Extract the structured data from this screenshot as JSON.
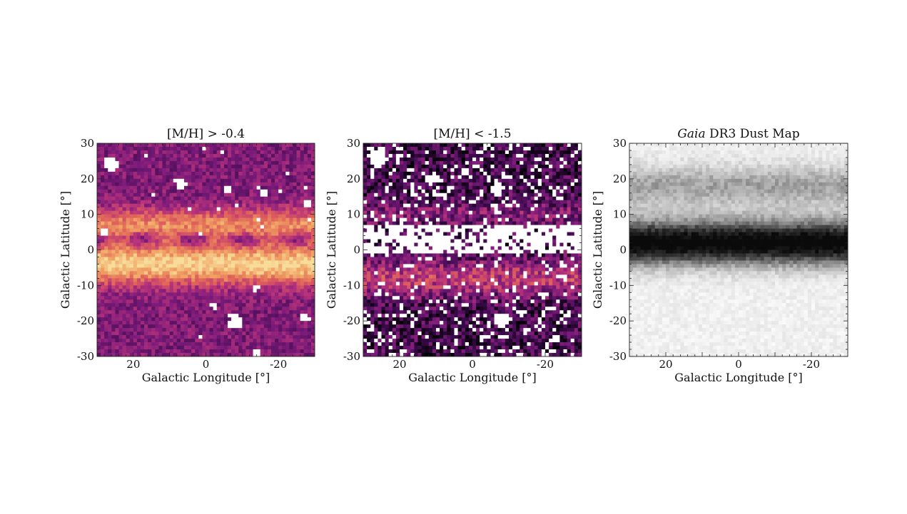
{
  "chart_data": [
    {
      "type": "heatmap",
      "title": "[M/H] > -0.4",
      "title_parts": {
        "prefix": "",
        "italic": "",
        "rest": "[M/H] > -0.4"
      },
      "xlabel": "Galactic Longitude [°]",
      "ylabel": "Galactic Latitude [°]",
      "xlim": [
        30,
        -30
      ],
      "ylim": [
        -30,
        30
      ],
      "xticks": [
        20,
        0,
        -20
      ],
      "xtick_labels": [
        "20",
        "0",
        "-20"
      ],
      "yticks": [
        30,
        20,
        10,
        0,
        -10,
        -20,
        -30
      ],
      "ytick_labels": [
        "30",
        "20",
        "10",
        "0",
        "-10",
        "-20",
        "-30"
      ],
      "grid": false,
      "colormap": [
        "#3a0a4a",
        "#7a1a7a",
        "#b8337a",
        "#e0625a",
        "#f0a062",
        "#f7dc9a"
      ],
      "field": {
        "bins": 60,
        "seed": 11,
        "base": 0.22,
        "bands": [
          {
            "b0": -4,
            "width": 5.5,
            "amp": 0.75
          },
          {
            "b0": 7,
            "width": 4.5,
            "amp": 0.5
          }
        ],
        "dark_lane": {
          "b0": 3,
          "width": 2.0,
          "amp": -0.35
        },
        "noise": 0.14,
        "holes": [
          {
            "l": 26,
            "b": 24,
            "r": 2.2
          },
          {
            "l": 7,
            "b": 19,
            "r": 1.5
          },
          {
            "l": -6,
            "b": 17,
            "r": 1.2
          },
          {
            "l": -16,
            "b": 16,
            "r": 1.0
          },
          {
            "l": 28,
            "b": 5,
            "r": 1.0
          },
          {
            "l": -28,
            "b": 13,
            "r": 0.8
          },
          {
            "l": -8,
            "b": -20,
            "r": 2.0
          },
          {
            "l": -27,
            "b": -19,
            "r": 1.4
          },
          {
            "l": -14,
            "b": -29,
            "r": 1.2
          },
          {
            "l": -14,
            "b": -11,
            "r": 0.7
          },
          {
            "l": -2,
            "b": -16,
            "r": 0.7
          }
        ],
        "hole_sparse": 0.004
      }
    },
    {
      "type": "heatmap",
      "title": "[M/H] < -1.5",
      "title_parts": {
        "prefix": "",
        "italic": "",
        "rest": "[M/H] < -1.5"
      },
      "xlabel": "Galactic Longitude [°]",
      "ylabel": "Galactic Latitude [°]",
      "xlim": [
        30,
        -30
      ],
      "ylim": [
        -30,
        30
      ],
      "xticks": [
        20,
        0,
        -20
      ],
      "xtick_labels": [
        "20",
        "0",
        "-20"
      ],
      "yticks": [
        30,
        20,
        10,
        0,
        -10,
        -20,
        -30
      ],
      "ytick_labels": [
        "30",
        "20",
        "10",
        "0",
        "-10",
        "-20",
        "-30"
      ],
      "grid": false,
      "colormap": [
        "#000000",
        "#3a0a4a",
        "#7a1a7a",
        "#b8337a",
        "#e0625a",
        "#f0a062"
      ],
      "field": {
        "bins": 60,
        "seed": 29,
        "base": 0.22,
        "bands": [
          {
            "b0": -8,
            "width": 5.0,
            "amp": 0.42
          },
          {
            "b0": 10,
            "width": 3.5,
            "amp": 0.22
          }
        ],
        "dark_lane": {
          "b0": 0,
          "width": 1.0,
          "amp": 0.0
        },
        "noise": 0.22,
        "holes": [
          {
            "l": 26,
            "b": 26,
            "r": 2.5
          },
          {
            "l": 11,
            "b": 20,
            "r": 1.8
          },
          {
            "l": -7,
            "b": 17,
            "r": 1.8
          },
          {
            "l": -8,
            "b": -20,
            "r": 2.0
          },
          {
            "l": -23,
            "b": -25,
            "r": 1.3
          }
        ],
        "plane_hole": {
          "b0": 3,
          "width": 4.2,
          "prob": 0.78
        },
        "hole_sparse": 0.09,
        "hole_sparse_highlat": 0.16
      }
    },
    {
      "type": "heatmap",
      "title": "Gaia DR3 Dust Map",
      "title_parts": {
        "prefix": "",
        "italic": "Gaia",
        "rest": " DR3 Dust Map"
      },
      "xlabel": "Galactic Longitude [°]",
      "ylabel": "Galactic Latitude [°]",
      "xlim": [
        30,
        -30
      ],
      "ylim": [
        -30,
        30
      ],
      "xticks": [
        20,
        0,
        -20
      ],
      "xtick_labels": [
        "20",
        "0",
        "-20"
      ],
      "yticks": [
        30,
        20,
        10,
        0,
        -10,
        -20,
        -30
      ],
      "ytick_labels": [
        "30",
        "20",
        "10",
        "0",
        "-10",
        "-20",
        "-30"
      ],
      "grid": false,
      "colormap": [
        "#ffffff",
        "#e6e6e6",
        "#b8b8b8",
        "#7a7a7a",
        "#3a3a3a",
        "#0a0a0a"
      ],
      "field": {
        "bins": 60,
        "seed": 47,
        "base": 0.12,
        "bands": [
          {
            "b0": 2,
            "width": 6.5,
            "amp": 0.95
          },
          {
            "b0": 18,
            "width": 6.0,
            "amp": 0.35
          }
        ],
        "dark_lane": {
          "b0": 0,
          "width": 1.0,
          "amp": 0.0
        },
        "noise": 0.08,
        "holes": [],
        "hole_sparse": 0.0
      }
    }
  ]
}
